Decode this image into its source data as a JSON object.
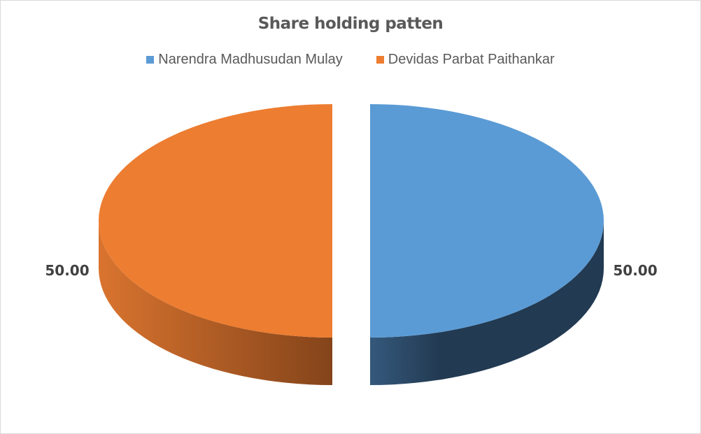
{
  "chart_data": {
    "type": "pie",
    "title": "Share holding patten",
    "legend_position": "top",
    "style": "3d-exploded",
    "slices": [
      {
        "name": "Narendra Madhusudan Mulay",
        "value": 50.0,
        "label": "50.00",
        "color": "#5b9bd5",
        "side_color": "#223a52"
      },
      {
        "name": "Devidas Parbat Paithankar",
        "value": 50.0,
        "label": "50.00",
        "color": "#ed7d31",
        "side_color": "#8a4717"
      }
    ]
  }
}
